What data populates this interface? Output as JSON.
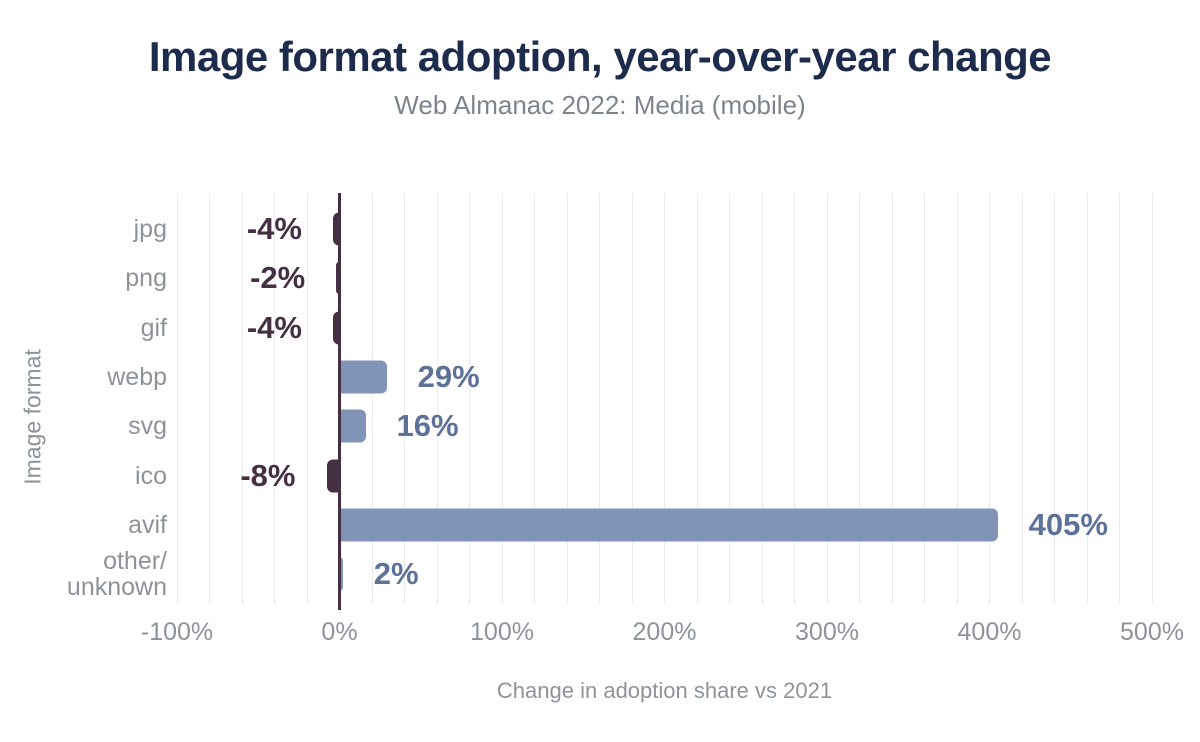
{
  "chart_data": {
    "type": "bar",
    "orientation": "horizontal",
    "title": "Image format adoption, year-over-year change",
    "subtitle": "Web Almanac 2022: Media (mobile)",
    "xlabel": "Change in adoption share vs 2021",
    "ylabel": "Image format",
    "categories": [
      "jpg",
      "png",
      "gif",
      "webp",
      "svg",
      "ico",
      "avif",
      "other/unknown"
    ],
    "values": [
      -4,
      -2,
      -4,
      29,
      16,
      -8,
      405,
      2
    ],
    "value_labels": [
      "-4%",
      "-2%",
      "-4%",
      "29%",
      "16%",
      "-8%",
      "405%",
      "2%"
    ],
    "xlim": [
      -100,
      500
    ],
    "x_tick_values": [
      -100,
      0,
      100,
      200,
      300,
      400,
      500
    ],
    "x_tick_labels": [
      "-100%",
      "0%",
      "100%",
      "200%",
      "300%",
      "400%",
      "500%"
    ],
    "grid": "vertical minor gridlines every 20%, zero axis emphasized",
    "legend": "none",
    "colors": {
      "positive_bar": "#8094b7",
      "negative_bar": "#452f43",
      "positive_label": "#5d7199",
      "negative_label": "#452f43",
      "title": "#1d2b4c",
      "subtitle": "#7d848e",
      "axis_text": "#8e939b",
      "gridline": "#ececec",
      "zero_line": "#452f43",
      "background": "#ffffff"
    }
  }
}
